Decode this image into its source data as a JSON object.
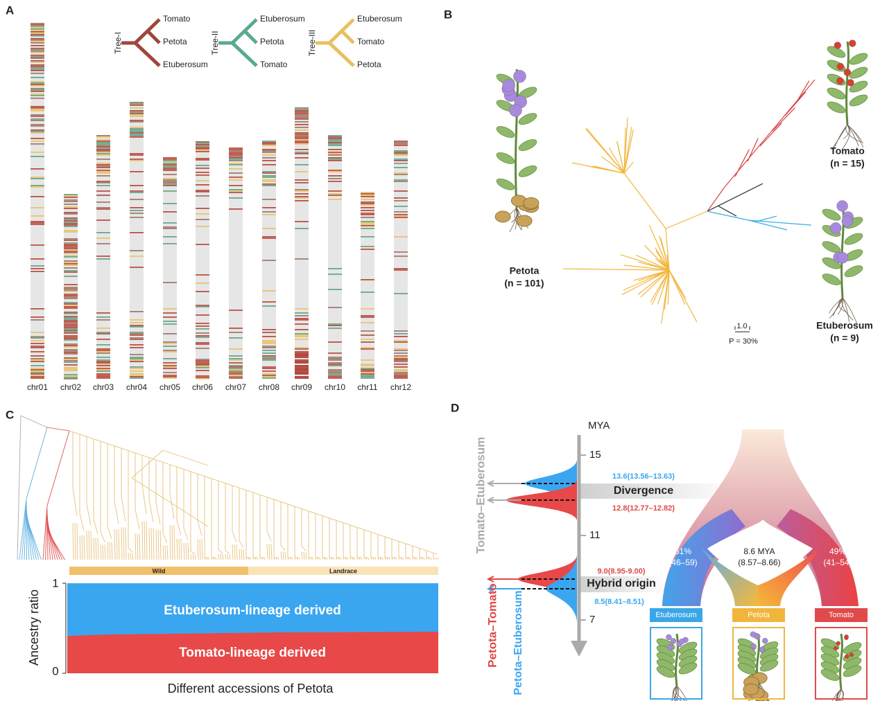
{
  "panel_a": {
    "label": "A",
    "chromosomes": [
      "chr01",
      "chr02",
      "chr03",
      "chr04",
      "chr05",
      "chr06",
      "chr07",
      "chr08",
      "chr09",
      "chr10",
      "chr11",
      "chr12"
    ],
    "trees": [
      {
        "name": "Tree-I",
        "leaves": [
          "Tomato",
          "Petota",
          "Etuberosum"
        ]
      },
      {
        "name": "Tree-II",
        "leaves": [
          "Etuberosum",
          "Petota",
          "Tomato"
        ]
      },
      {
        "name": "Tree-III",
        "leaves": [
          "Etuberosum",
          "Tomato",
          "Petota"
        ]
      }
    ]
  },
  "panel_b": {
    "label": "B",
    "clades": [
      {
        "name": "Petota",
        "count": "(n = 101)"
      },
      {
        "name": "Tomato",
        "count": "(n = 15)"
      },
      {
        "name": "Etuberosum",
        "count": "(n = 9)"
      }
    ],
    "scale": "1.0",
    "support": "P = 30%"
  },
  "panel_c": {
    "label": "C",
    "groups": [
      "Wild",
      "Landrace"
    ],
    "y_label": "Ancestry ratio",
    "y_top": "1",
    "y_bottom": "0",
    "upper_label": "Etuberosum-lineage derived",
    "lower_label": "Tomato-lineage derived",
    "x_label": "Different accessions of Petota"
  },
  "panel_d": {
    "label": "D",
    "axis_label": "MYA",
    "ticks": [
      "15",
      "11",
      "7"
    ],
    "pairs": [
      "Tomato–Etuberosum",
      "Petota–Tomato",
      "Petota–Etuberosum"
    ],
    "events": [
      "Divergence",
      "Hybrid origin"
    ],
    "estimates": [
      "13.6(13.56–13.63)",
      "12.8(12.77–12.82)",
      "9.0(8.95-9.00)",
      "8.5(8.41–8.51)"
    ],
    "left_share": "51%",
    "left_range": "(46–59)",
    "mid_age": "8.6 MYA",
    "mid_range": "(8.57–8.66)",
    "right_share": "49%",
    "right_range": "(41–54)",
    "boxes": [
      "Etuberosum",
      "Petota",
      "Tomato"
    ]
  }
}
